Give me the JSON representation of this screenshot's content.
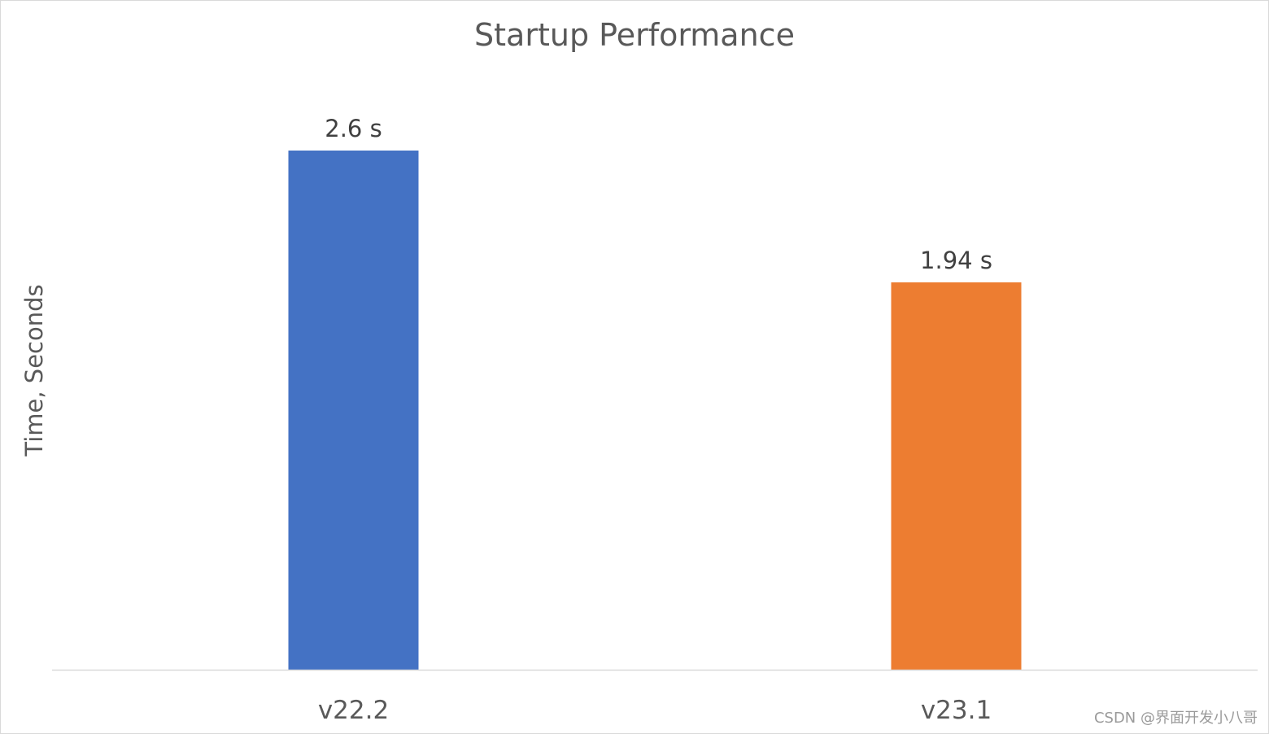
{
  "chart_data": {
    "type": "bar",
    "title": "Startup Performance",
    "xlabel": "",
    "ylabel": "Time, Seconds",
    "categories": [
      "v22.2",
      "v23.1"
    ],
    "values": [
      2.6,
      1.94
    ],
    "data_labels": [
      "2.6 s",
      "1.94 s"
    ],
    "colors": [
      "#4472C4",
      "#ED7D31"
    ],
    "ylim": [
      0,
      2.6
    ],
    "grid": false,
    "legend": "none"
  },
  "watermark": "CSDN @界面开发小八哥"
}
